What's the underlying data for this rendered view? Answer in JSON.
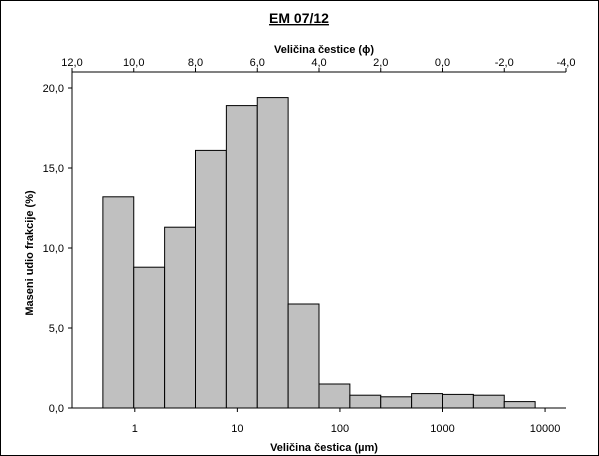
{
  "chart_data": {
    "type": "bar",
    "title": "EM 07/12",
    "xlabel": "Veličina čestica (µm)",
    "x2label": "Veličina čestice (ϕ)",
    "ylabel": "Maseni udio frakcije (%)",
    "x_scale": "log",
    "x_range_um": [
      0.2,
      16384
    ],
    "x2_range_phi": [
      12.0,
      -4.0
    ],
    "ylim": [
      0,
      21
    ],
    "y_ticks": [
      0,
      5,
      10,
      15,
      20
    ],
    "y_tick_labels": [
      "0,0",
      "5,0",
      "10,0",
      "15,0",
      "20,0"
    ],
    "x_ticks": [
      1,
      10,
      100,
      1000,
      10000
    ],
    "x_tick_labels": [
      "1",
      "10",
      "100",
      "1000",
      "10000"
    ],
    "x2_ticks": [
      12,
      10,
      8,
      6,
      4,
      2,
      0,
      -2,
      -4
    ],
    "x2_tick_labels": [
      "12,0",
      "10,0",
      "8,0",
      "6,0",
      "4,0",
      "2,0",
      "0,0",
      "-2,0",
      "-4,0"
    ],
    "bins_phi": [
      [
        11,
        10
      ],
      [
        10,
        9
      ],
      [
        9,
        8
      ],
      [
        8,
        7
      ],
      [
        7,
        6
      ],
      [
        6,
        5
      ],
      [
        5,
        4
      ],
      [
        4,
        3
      ],
      [
        3,
        2
      ],
      [
        2,
        1
      ],
      [
        1,
        0
      ],
      [
        0,
        -1
      ],
      [
        -1,
        -2
      ],
      [
        -2,
        -3
      ]
    ],
    "values": [
      13.2,
      8.8,
      11.3,
      16.1,
      18.9,
      19.4,
      6.5,
      1.5,
      0.8,
      0.7,
      0.9,
      0.85,
      0.8,
      0.4
    ],
    "grid": false,
    "legend": "none",
    "bar_color": "#c0c0c0"
  }
}
